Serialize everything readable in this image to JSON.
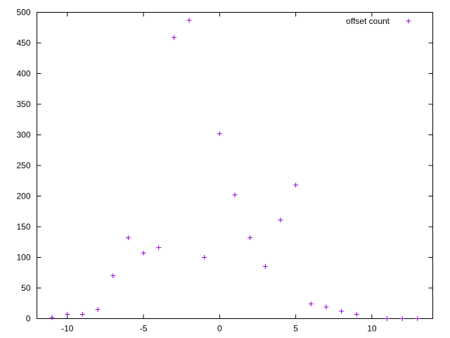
{
  "chart_data": {
    "type": "scatter",
    "title": "",
    "xlabel": "",
    "ylabel": "",
    "xlim": [
      -12,
      14
    ],
    "ylim": [
      0,
      500
    ],
    "grid": false,
    "legend_position": "top-right",
    "x_ticks": [
      -10,
      -5,
      0,
      5,
      10
    ],
    "x_tick_labels": [
      "-10",
      "-5",
      "0",
      "5",
      "10"
    ],
    "y_ticks": [
      0,
      50,
      100,
      150,
      200,
      250,
      300,
      350,
      400,
      450,
      500
    ],
    "y_tick_labels": [
      "0",
      "50",
      "100",
      "150",
      "200",
      "250",
      "300",
      "350",
      "400",
      "450",
      "500"
    ],
    "series": [
      {
        "name": "offset count",
        "color": "#9400d3",
        "marker": "plus",
        "x": [
          -11,
          -10,
          -9,
          -8,
          -7,
          -6,
          -5,
          -4,
          -3,
          -2,
          -1,
          0,
          1,
          2,
          3,
          4,
          5,
          6,
          7,
          8,
          9,
          11,
          12,
          13
        ],
        "y": [
          2,
          7,
          7,
          15,
          70,
          132,
          107,
          116,
          459,
          487,
          100,
          302,
          202,
          132,
          85,
          161,
          218,
          24,
          19,
          12,
          7,
          0,
          0,
          0
        ]
      }
    ]
  }
}
